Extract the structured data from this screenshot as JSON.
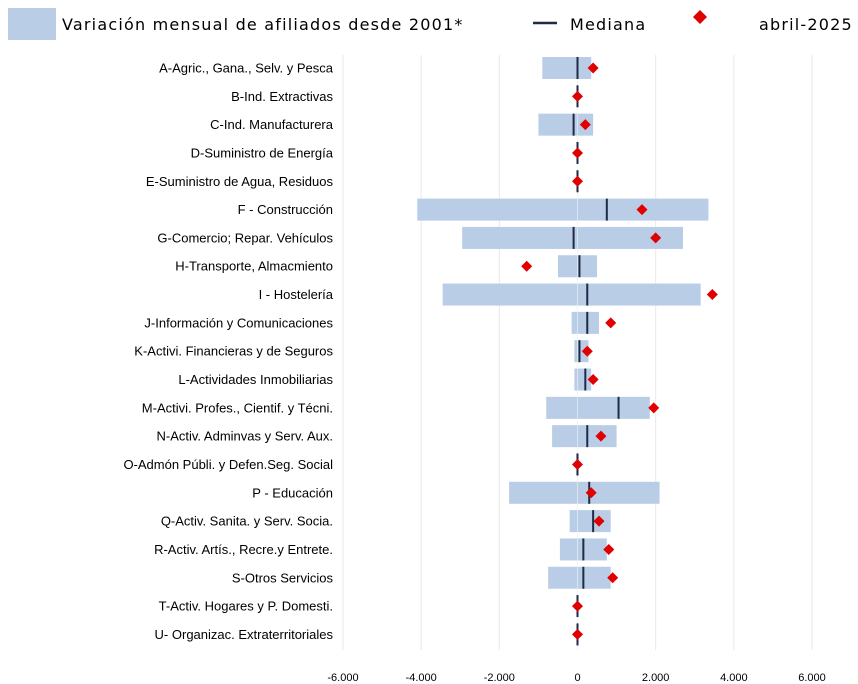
{
  "chart_data": {
    "type": "bar",
    "orientation": "horizontal",
    "legend": {
      "position": "top",
      "items": [
        {
          "key": "range",
          "label": "Variación mensual de afiliados desde 2001*",
          "color": "#b9cde6"
        },
        {
          "key": "median",
          "label": "Mediana",
          "color": "#1f2a44"
        },
        {
          "key": "point",
          "label": "abril-2025",
          "color": "#e00000"
        }
      ]
    },
    "categories": [
      "A-Agric., Gana., Selv. y Pesca",
      "B-Ind. Extractivas",
      "C-Ind. Manufacturera",
      "D-Suministro de Energía",
      "E-Suministro de Agua, Residuos",
      "F - Construcción",
      "G-Comercio; Repar. Vehículos",
      "H-Transporte, Almacmiento",
      "I - Hostelería",
      "J-Información y Comunicaciones",
      "K-Activi. Financieras y de Seguros",
      "L-Actividades Inmobiliarias",
      "M-Activi. Profes., Cientif. y Técni.",
      "N-Activ. Adminvas y Serv. Aux.",
      "O-Admón Públi. y Defen.Seg. Social",
      "P - Educación",
      "Q-Activ. Sanita. y Serv. Socia.",
      "R-Activ. Artís., Recre.y Entrete.",
      "S-Otros Servicios",
      "T-Activ. Hogares y P. Domesti.",
      "U- Organizac. Extraterritoriales"
    ],
    "series": [
      {
        "name": "Variación mensual de afiliados desde 2001*",
        "kind": "range",
        "min": [
          -900,
          -20,
          -1000,
          -20,
          -20,
          -4100,
          -2950,
          -500,
          -3450,
          -150,
          -80,
          -80,
          -800,
          -650,
          -30,
          -1750,
          -200,
          -450,
          -750,
          -20,
          -10
        ],
        "max": [
          350,
          20,
          400,
          20,
          20,
          3350,
          2700,
          500,
          3150,
          550,
          280,
          350,
          1850,
          1000,
          20,
          2100,
          850,
          750,
          850,
          20,
          10
        ]
      },
      {
        "name": "Mediana",
        "kind": "median",
        "values": [
          0,
          0,
          -100,
          0,
          0,
          750,
          -100,
          50,
          250,
          250,
          50,
          200,
          1050,
          250,
          0,
          300,
          400,
          150,
          150,
          0,
          0
        ]
      },
      {
        "name": "abril-2025",
        "kind": "point",
        "values": [
          400,
          0,
          200,
          0,
          0,
          1650,
          2000,
          -1300,
          3450,
          850,
          250,
          400,
          1950,
          600,
          0,
          350,
          550,
          800,
          900,
          0,
          0
        ]
      }
    ],
    "xlim": [
      -6000,
      6000
    ],
    "xticks": [
      -6000,
      -4000,
      -2000,
      0,
      2000,
      4000,
      6000
    ],
    "xtick_labels": [
      "-6.000",
      "-4.000",
      "-2.000",
      "0",
      "2.000",
      "4.000",
      "6.000"
    ],
    "grid": true
  }
}
